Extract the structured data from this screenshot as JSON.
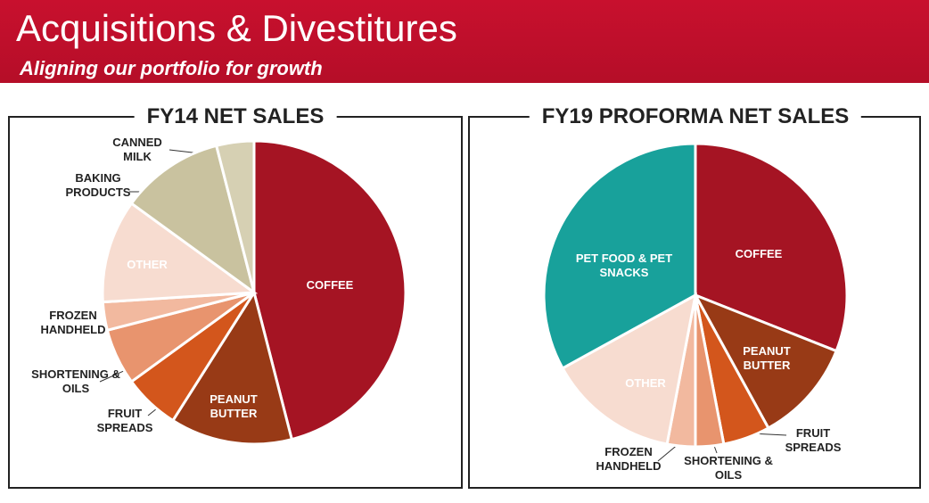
{
  "header": {
    "title": "Acquisitions & Divestitures",
    "subtitle": "Aligning our portfolio for growth"
  },
  "chart_data": [
    {
      "type": "pie",
      "title": "FY14 NET SALES",
      "categories": [
        "COFFEE",
        "PEANUT BUTTER",
        "FRUIT SPREADS",
        "SHORTENING & OILS",
        "FROZEN HANDHELD",
        "OTHER",
        "BAKING PRODUCTS",
        "CANNED MILK"
      ],
      "values": [
        46,
        13,
        6,
        6,
        3,
        11,
        11,
        4
      ],
      "colors": [
        "#a51423",
        "#983a16",
        "#d3561c",
        "#e8946e",
        "#f2b99f",
        "#f7dcd0",
        "#c9c29f",
        "#d6d0b3"
      ]
    },
    {
      "type": "pie",
      "title": "FY19 PROFORMA NET SALES",
      "categories": [
        "COFFEE",
        "PEANUT BUTTER",
        "FRUIT SPREADS",
        "SHORTENING & OILS",
        "FROZEN HANDHELD",
        "OTHER",
        "PET FOOD & PET SNACKS"
      ],
      "values": [
        31,
        11,
        5,
        3,
        3,
        14,
        33
      ],
      "colors": [
        "#a51423",
        "#983a16",
        "#d3561c",
        "#e8946e",
        "#f2b99f",
        "#f7dcd0",
        "#18a19b"
      ]
    }
  ]
}
